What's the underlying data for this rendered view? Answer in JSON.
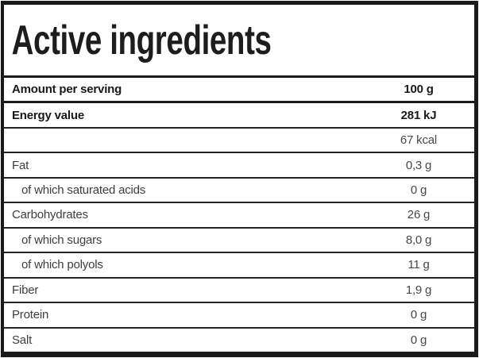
{
  "table": {
    "title": "Active ingredients",
    "header": {
      "label": "Amount per serving",
      "value": "100 g"
    },
    "rows": [
      {
        "label": "Energy value",
        "value": "281 kJ"
      },
      {
        "label": "",
        "value": "67 kcal"
      },
      {
        "label": "Fat",
        "value": "0,3 g"
      },
      {
        "label": "of which saturated acids",
        "value": "0 g"
      },
      {
        "label": "Carbohydrates",
        "value": "26 g"
      },
      {
        "label": "of which sugars",
        "value": "8,0 g"
      },
      {
        "label": "of which polyols",
        "value": "11 g"
      },
      {
        "label": "Fiber",
        "value": "1,9 g"
      },
      {
        "label": "Protein",
        "value": "0 g"
      },
      {
        "label": "Salt",
        "value": "0 g"
      }
    ],
    "colors": {
      "border": "#1a1a1a",
      "title_text": "#1d1d1d",
      "bold_text": "#191919",
      "body_text": "#3e3e3e",
      "value_text": "#484848",
      "background": "#ffffff"
    }
  }
}
